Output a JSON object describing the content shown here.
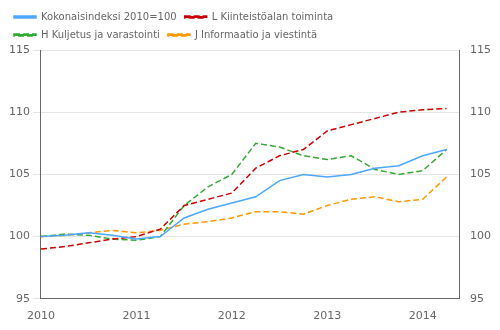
{
  "chart_data": {
    "type": "line",
    "x": [
      2010.0,
      2010.25,
      2010.5,
      2010.75,
      2011.0,
      2011.25,
      2011.5,
      2011.75,
      2012.0,
      2012.25,
      2012.5,
      2012.75,
      2013.0,
      2013.25,
      2013.5,
      2013.75,
      2014.0,
      2014.25
    ],
    "series": [
      {
        "name": "Kokonaisindeksi 2010=100",
        "color": "#4da6ff",
        "line_style": "solid",
        "values": [
          100.0,
          100.1,
          100.3,
          100.1,
          99.8,
          100.0,
          101.5,
          102.2,
          102.7,
          103.2,
          104.5,
          105.0,
          104.8,
          105.0,
          105.5,
          105.7,
          106.5,
          107.0
        ]
      },
      {
        "name": "L Kiinteistöalan toiminta",
        "color": "#cc0000",
        "line_style": "dashed",
        "values": [
          99.0,
          99.2,
          99.5,
          99.8,
          100.0,
          100.6,
          102.5,
          103.0,
          103.5,
          105.5,
          106.5,
          107.0,
          108.5,
          109.0,
          109.5,
          110.0,
          110.2,
          110.3
        ]
      },
      {
        "name": "H Kuljetus ja varastointi",
        "color": "#33aa33",
        "line_style": "dashed",
        "values": [
          100.0,
          100.2,
          100.1,
          99.8,
          99.7,
          100.0,
          102.5,
          104.0,
          105.0,
          107.5,
          107.2,
          106.5,
          106.2,
          106.5,
          105.4,
          105.0,
          105.3,
          107.0
        ]
      },
      {
        "name": "J Informaatio ja viestintä",
        "color": "#ff9900",
        "line_style": "dashed",
        "values": [
          100.0,
          100.1,
          100.3,
          100.5,
          100.3,
          100.5,
          101.0,
          101.2,
          101.5,
          102.0,
          102.0,
          101.8,
          102.5,
          103.0,
          103.2,
          102.8,
          103.0,
          104.8
        ]
      }
    ],
    "xlim": [
      2010.0,
      2014.38
    ],
    "xticks": [
      2010,
      2011,
      2012,
      2013,
      2014
    ],
    "ylim": [
      95,
      115
    ],
    "yticks": [
      95,
      100,
      105,
      110,
      115
    ],
    "y2lim": [
      95,
      115
    ],
    "y2ticks": [
      95,
      100,
      105,
      110,
      115
    ],
    "grid": "y",
    "legend": "upper left"
  }
}
